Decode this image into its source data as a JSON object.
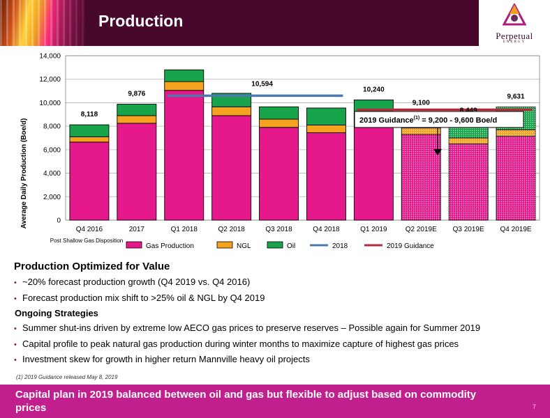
{
  "header": {
    "title": "Production"
  },
  "logo": {
    "name": "Perpetual",
    "sub": "ENERGY"
  },
  "chart_data": {
    "type": "bar",
    "stacked": true,
    "ylabel": "Average Daily Production (Boe/d)",
    "ylim": [
      0,
      14000
    ],
    "yticks": [
      "0",
      "2,000",
      "4,000",
      "6,000",
      "8,000",
      "10,000",
      "12,000",
      "14,000"
    ],
    "ytick_values": [
      0,
      2000,
      4000,
      6000,
      8000,
      10000,
      12000,
      14000
    ],
    "categories": [
      "Q4 2016",
      "2017",
      "Q1 2018",
      "Q2 2018",
      "Q3 2018",
      "Q4 2018",
      "Q1 2019",
      "Q2 2019E",
      "Q3 2019E",
      "Q4 2019E"
    ],
    "category_note": "Post Shallow Gas Disposition",
    "forecast_from_index": 7,
    "series": [
      {
        "name": "Gas Production",
        "color": "#e6198c",
        "values": [
          6650,
          8250,
          11050,
          8900,
          7900,
          7450,
          8300,
          7300,
          6500,
          7150
        ]
      },
      {
        "name": "NGL",
        "color": "#f4a21f",
        "values": [
          450,
          650,
          750,
          750,
          700,
          650,
          750,
          550,
          500,
          550
        ]
      },
      {
        "name": "Oil",
        "color": "#17a44a",
        "values": [
          1018,
          976,
          1000,
          1150,
          1050,
          1450,
          1190,
          1250,
          1449,
          1931
        ]
      }
    ],
    "totals": [
      "8,118",
      "9,876",
      "",
      "",
      "",
      "",
      "10,240",
      "9,100",
      "8,449",
      "9,631"
    ],
    "lines": [
      {
        "name": "2018",
        "color": "#4a7ab0",
        "value": 10594,
        "label": "10,594",
        "from_index": 2,
        "to_index": 5
      },
      {
        "name": "2019 Guidance",
        "color": "#b0303a",
        "value": 9400,
        "from_index": 6,
        "to_index": 9
      }
    ],
    "annotation": {
      "prefix": "2019 Guidance",
      "sup": "(1)",
      "suffix": " = 9,200 - 9,600 Boe/d"
    },
    "legend_position": "bottom",
    "grid": true
  },
  "content": {
    "section_title": "Production Optimized for Value",
    "bullets_1": [
      "~20% forecast production growth (Q4 2019 vs. Q4 2016)",
      "Forecast production mix shift to >25% oil & NGL by Q4 2019"
    ],
    "subheading": "Ongoing Strategies",
    "bullets_2": [
      "Summer shut-ins driven by extreme low AECO gas prices to preserve reserves – Possible again for Summer 2019",
      "Capital profile to peak natural gas production during winter months to maximize capture of highest gas prices",
      "Investment skew for growth in higher return Mannville heavy oil projects"
    ],
    "footnote": "(1)   2019 Guidance released May 8, 2019"
  },
  "footer": {
    "text": "Capital plan in 2019 balanced between oil and gas but flexible to adjust based on commodity prices",
    "page_number": "7"
  }
}
